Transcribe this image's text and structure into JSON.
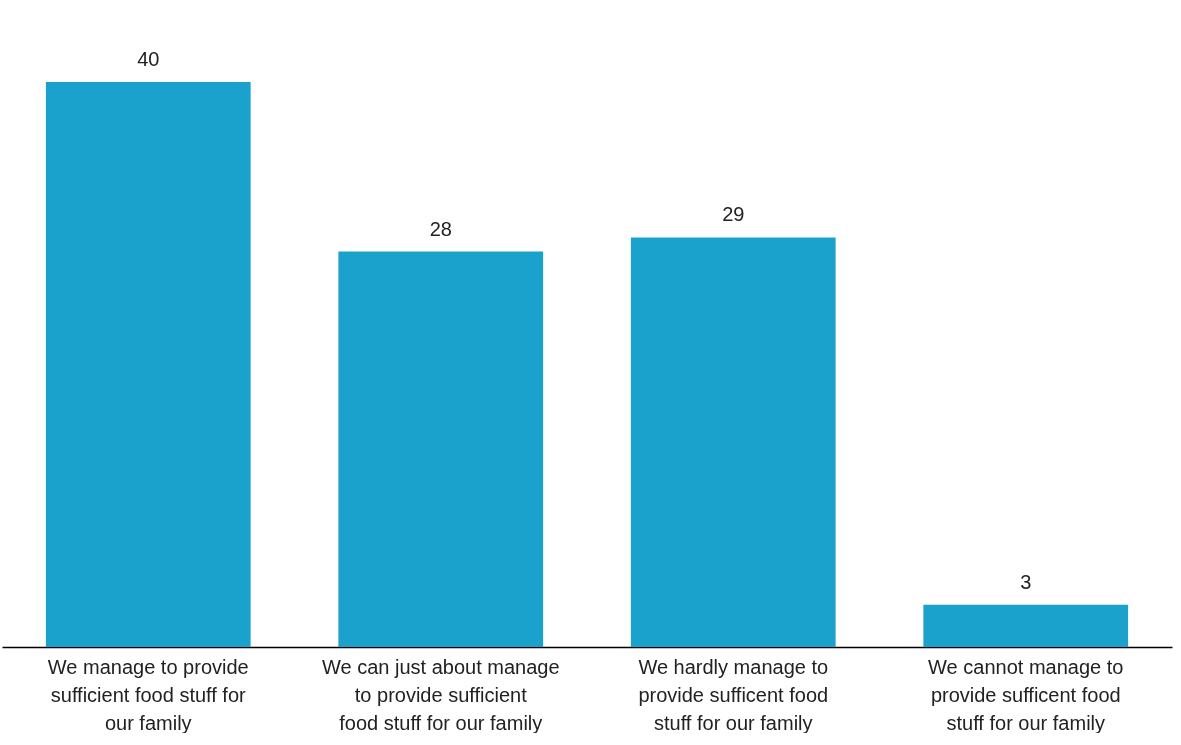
{
  "chart_data": {
    "type": "bar",
    "categories": [
      "We manage to provide sufficient food stuff for our family",
      "We can just about manage to provide sufficient food stuff for our family",
      "We hardly manage to provide sufficent food stuff for our family",
      "We cannot manage to provide sufficent food stuff for our family"
    ],
    "values": [
      40,
      28,
      29,
      3
    ],
    "color": "#1aa1cc",
    "data_labels": true,
    "grid": false
  }
}
